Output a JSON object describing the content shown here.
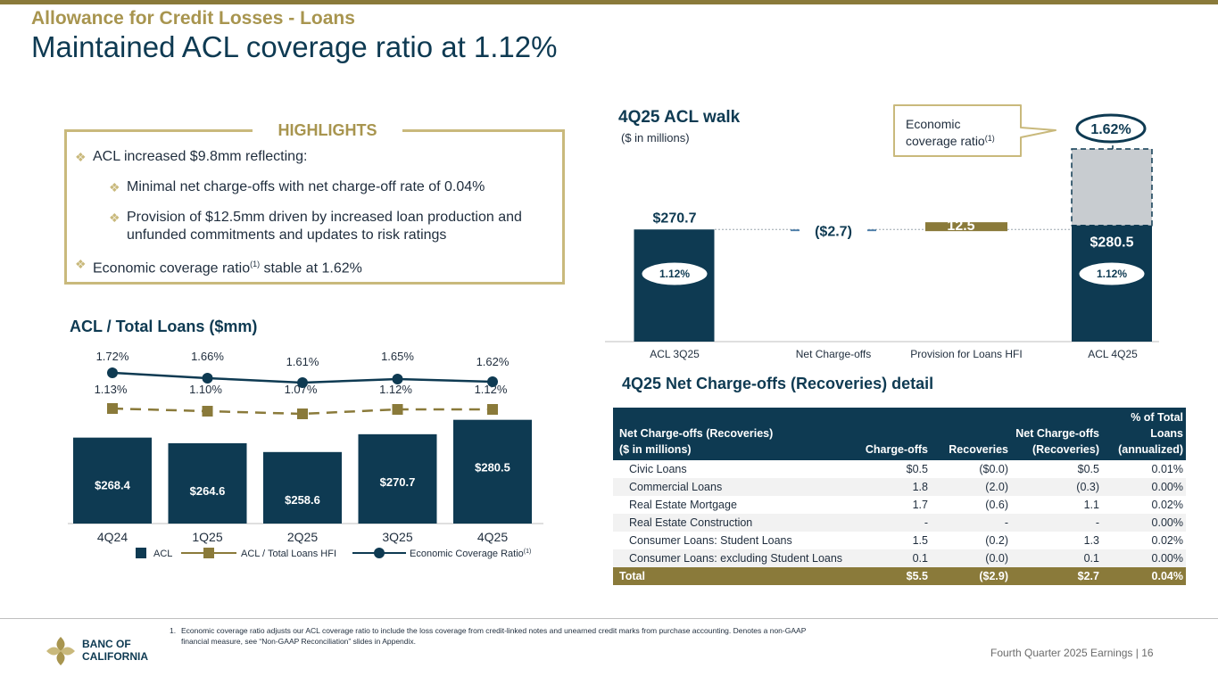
{
  "header": {
    "subtitle": "Allowance for Credit Losses - Loans",
    "title": "Maintained ACL coverage ratio at 1.12%"
  },
  "highlights": {
    "title": "HIGHLIGHTS",
    "bullet1": "ACL increased $9.8mm reflecting:",
    "bullet1a": "Minimal net charge-offs with net charge-off rate of 0.04%",
    "bullet1b_line1": "Provision of $12.5mm driven by increased loan production and",
    "bullet1b_line2": "unfunded commitments and updates to risk ratings",
    "bullet2_pre": "Economic coverage ratio",
    "bullet2_sup": "(1)",
    "bullet2_post": " stable at 1.62%"
  },
  "chart_data": [
    {
      "type": "bar",
      "title": "ACL / Total Loans ($mm)",
      "categories": [
        "4Q24",
        "1Q25",
        "2Q25",
        "3Q25",
        "4Q25"
      ],
      "series": [
        {
          "name": "ACL",
          "values": [
            268.4,
            264.6,
            258.6,
            270.7,
            280.5
          ],
          "labels": [
            "$268.4",
            "$264.6",
            "$258.6",
            "$270.7",
            "$280.5"
          ]
        },
        {
          "name": "ACL / Total Loans HFI",
          "values": [
            1.13,
            1.1,
            1.07,
            1.12,
            1.12
          ],
          "labels": [
            "1.13%",
            "1.10%",
            "1.07%",
            "1.12%",
            "1.12%"
          ]
        },
        {
          "name": "Economic Coverage Ratio",
          "values": [
            1.72,
            1.66,
            1.61,
            1.65,
            1.62
          ],
          "labels": [
            "1.72%",
            "1.66%",
            "1.61%",
            "1.65%",
            "1.62%"
          ]
        }
      ],
      "legend": {
        "acl": "ACL",
        "ratio": "ACL / Total Loans HFI",
        "econ": "Economic Coverage Ratio",
        "econ_sup": "(1)"
      },
      "colors": {
        "bar": "#0e3a52",
        "dash": "#8a7a3a",
        "econ": "#0e3a52"
      }
    },
    {
      "type": "bar",
      "title": "4Q25 ACL walk",
      "subtitle": "($ in millions)",
      "categories": [
        "ACL 3Q25",
        "Net Charge-offs",
        "Provision for Loans HFI",
        "ACL 4Q25"
      ],
      "values": [
        270.7,
        -2.7,
        12.5,
        280.5
      ],
      "value_labels": [
        "$270.7",
        "($2.7)",
        "12.5",
        "$280.5"
      ],
      "coverage_labels": [
        "1.12%",
        "1.12%"
      ],
      "economic_coverage": {
        "label_line1": "Economic",
        "label_line2": "coverage ratio",
        "label_sup": "(1)",
        "value": "1.62%"
      },
      "colors": {
        "bar": "#0e3a52",
        "neg": "#4a7ca8",
        "pos": "#8a7a3a",
        "econ": "#c8ccd0"
      }
    }
  ],
  "table": {
    "title": "4Q25 Net Charge-offs (Recoveries) detail",
    "headers": {
      "c1_line1": "Net Charge-offs (Recoveries)",
      "c1_line2": "($ in millions)",
      "c2": "Charge-offs",
      "c3": "Recoveries",
      "c4_line1": "Net Charge-offs",
      "c4_line2": "(Recoveries)",
      "c5_line1": "% of Total",
      "c5_line2": "Loans",
      "c5_line3": "(annualized)"
    },
    "rows": [
      {
        "name": "Civic Loans",
        "co": "$0.5",
        "rec": "($0.0)",
        "net": "$0.5",
        "pct": "0.01%"
      },
      {
        "name": "Commercial Loans",
        "co": "1.8",
        "rec": "(2.0)",
        "net": "(0.3)",
        "pct": "0.00%"
      },
      {
        "name": "Real Estate Mortgage",
        "co": "1.7",
        "rec": "(0.6)",
        "net": "1.1",
        "pct": "0.02%"
      },
      {
        "name": "Real Estate Construction",
        "co": "-",
        "rec": "-",
        "net": "-",
        "pct": "0.00%"
      },
      {
        "name": "Consumer Loans: Student Loans",
        "co": "1.5",
        "rec": "(0.2)",
        "net": "1.3",
        "pct": "0.02%"
      },
      {
        "name": "Consumer Loans: excluding Student Loans",
        "co": "0.1",
        "rec": "(0.0)",
        "net": "0.1",
        "pct": "0.00%"
      }
    ],
    "total": {
      "name": "Total",
      "co": "$5.5",
      "rec": "($2.9)",
      "net": "$2.7",
      "pct": "0.04%"
    }
  },
  "footer": {
    "note_num": "1.",
    "note_line1": "Economic coverage ratio adjusts our ACL coverage ratio to include the loss coverage from credit-linked notes and unearned credit marks from purchase accounting. Denotes a non-GAAP",
    "note_line2": "financial measure, see “Non-GAAP Reconciliation” slides in Appendix.",
    "logo_line1": "BANC OF",
    "logo_line2": "CALIFORNIA",
    "right": "Fourth Quarter 2025 Earnings |  16"
  }
}
